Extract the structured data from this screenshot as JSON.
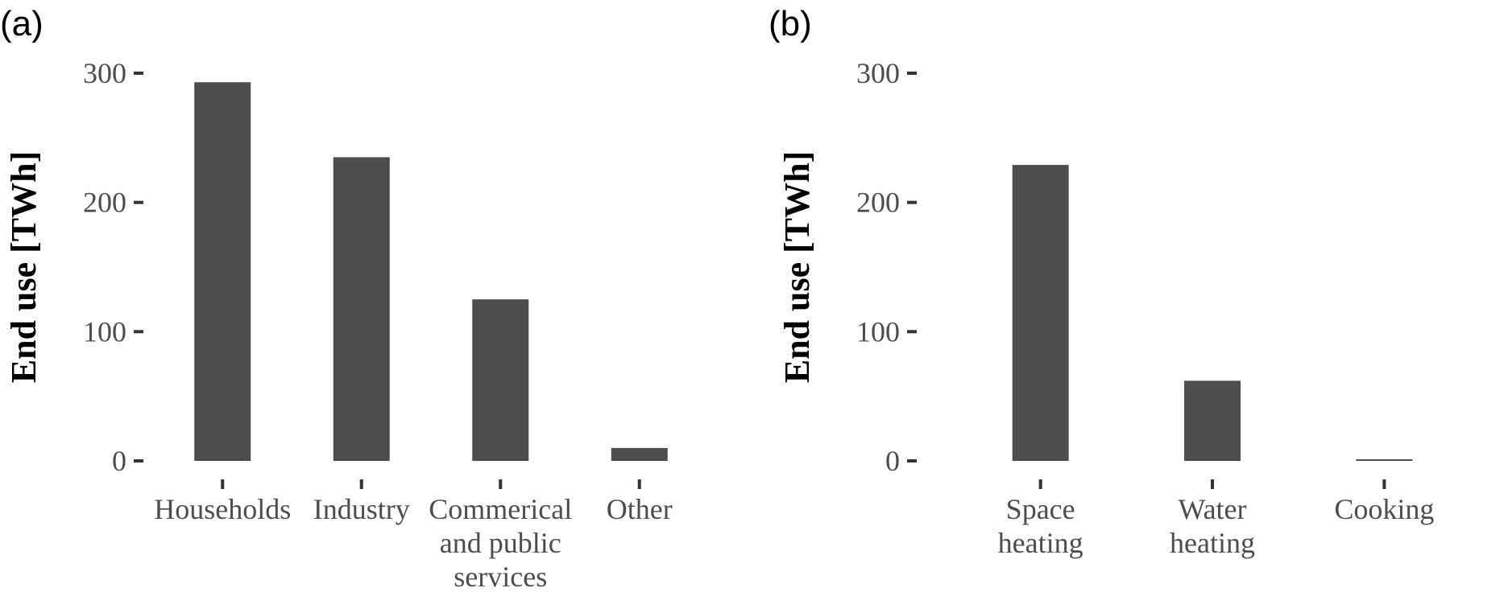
{
  "chart_data": [
    {
      "type": "bar",
      "panel_label": "(a)",
      "ylabel": "End use [TWh]",
      "ylim": [
        0,
        330
      ],
      "yticks": [
        "0",
        "100",
        "200",
        "300"
      ],
      "grid": false,
      "categories": [
        [
          "Households"
        ],
        [
          "Industry"
        ],
        [
          "Commerical",
          "and public",
          "services"
        ],
        [
          "Other"
        ]
      ],
      "values": [
        293,
        235,
        125,
        10
      ],
      "color": "#4d4d4d"
    },
    {
      "type": "bar",
      "panel_label": "(b)",
      "ylabel": "End use [TWh]",
      "ylim": [
        0,
        330
      ],
      "yticks": [
        "0",
        "100",
        "200",
        "300"
      ],
      "grid": false,
      "categories": [
        [
          "Space",
          "heating"
        ],
        [
          "Water",
          "heating"
        ],
        [
          "Cooking"
        ]
      ],
      "values": [
        229,
        62,
        1
      ],
      "color": "#4d4d4d"
    }
  ]
}
